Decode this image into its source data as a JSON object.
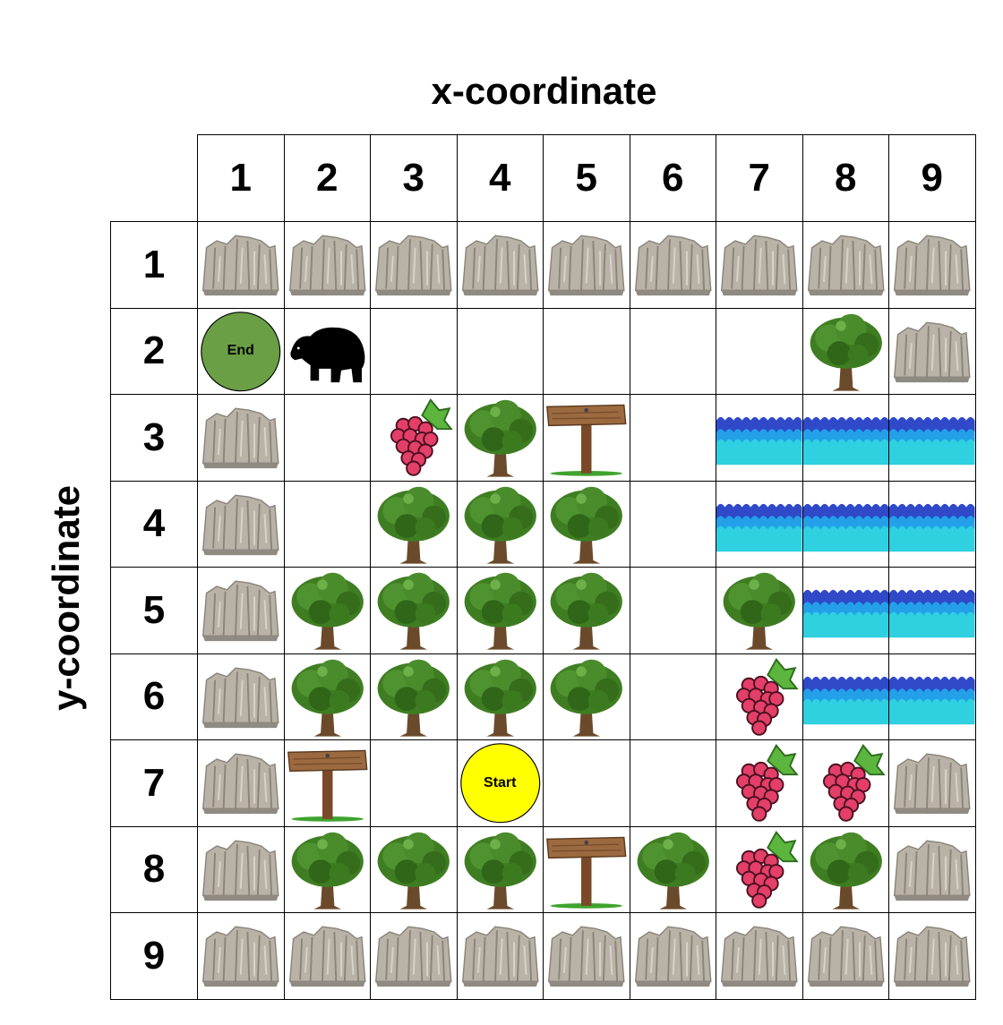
{
  "title_x": "x-coordinate",
  "title_y": "y-coordinate",
  "columns": [
    "1",
    "2",
    "3",
    "4",
    "5",
    "6",
    "7",
    "8",
    "9"
  ],
  "rows": [
    "1",
    "2",
    "3",
    "4",
    "5",
    "6",
    "7",
    "8",
    "9"
  ],
  "labels": {
    "end": "End",
    "start": "Start"
  },
  "colors": {
    "end": "#6a9f45",
    "start": "#ffff00",
    "water_dark": "#2f49c9",
    "water_mid": "#23a0e8",
    "water_light": "#2fd0e0",
    "berry": "#e43f69",
    "leaf": "#3d7a1e"
  },
  "grid": [
    [
      "rock",
      "rock",
      "rock",
      "rock",
      "rock",
      "rock",
      "rock",
      "rock",
      "rock"
    ],
    [
      "end",
      "bear",
      "empty",
      "empty",
      "empty",
      "empty",
      "empty",
      "tree",
      "rock"
    ],
    [
      "rock",
      "empty",
      "raspberry",
      "tree",
      "signpost",
      "empty",
      "water",
      "water",
      "water"
    ],
    [
      "rock",
      "empty",
      "tree",
      "tree",
      "tree",
      "empty",
      "water",
      "water",
      "water"
    ],
    [
      "rock",
      "tree",
      "tree",
      "tree",
      "tree",
      "empty",
      "tree",
      "water",
      "water"
    ],
    [
      "rock",
      "tree",
      "tree",
      "tree",
      "tree",
      "empty",
      "raspberry",
      "water",
      "water"
    ],
    [
      "rock",
      "signpost",
      "empty",
      "start",
      "empty",
      "empty",
      "raspberry",
      "raspberry",
      "rock"
    ],
    [
      "rock",
      "tree",
      "tree",
      "tree",
      "signpost",
      "tree",
      "raspberry",
      "tree",
      "rock"
    ],
    [
      "rock",
      "rock",
      "rock",
      "rock",
      "rock",
      "rock",
      "rock",
      "rock",
      "rock"
    ]
  ]
}
